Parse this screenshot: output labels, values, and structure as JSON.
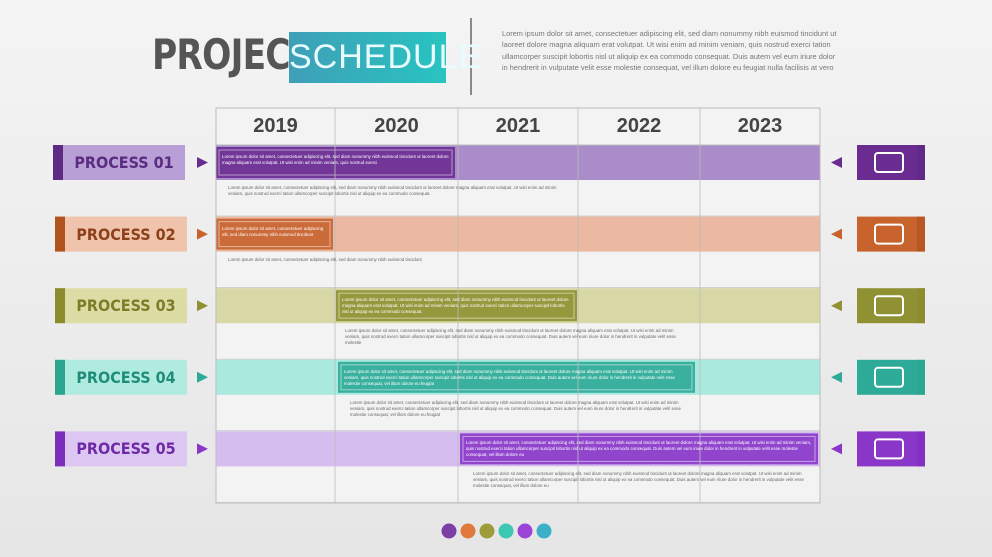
{
  "header": {
    "title_1": "PROJECT",
    "title_2": "SCHEDULE",
    "description": "Lorem ipsum dolor sit amet, consectetuer adipiscing elit, sed diam nonummy nibh euismod tincidunt ut laoreet dolore magna aliquam erat volutpat. Ut wisi enim ad minim veniam, quis nostrud exerci tation ullamcorper suscipit lobortis nisl ut aliquip ex ea commodo consequat. Duis autem vel eum iriure dolor in hendrerit in vulputate velit esse molestie consequat, vel illum dolore eu feugiat nulla facilisis at vero"
  },
  "years": [
    "2019",
    "2020",
    "2021",
    "2022",
    "2023"
  ],
  "processes": [
    {
      "label": "PROCESS 01",
      "task_text": "Lorem ipsum dolor sit amet, consectetuer adipiscing elit, sed diam nonummy nibh euismod tincidunt ut laoreet dolore magna aliquam erat volutpat. Ut wisi enim ad minim veniam, quis nostrud exerci",
      "note_text": "Lorem ipsum dolor sit amet, consectetuer adipiscing elit, sed diam nonummy nibh euismod tincidunt ut laoreet dolore magna aliquam erat volutpat. Ut wisi enim ad minim veniam, quis nostrud exerci tation ullamcorper suscipit lobortis nisl ut aliquip ex ea commodo consequat."
    },
    {
      "label": "PROCESS 02",
      "task_text": "Lorem ipsum dolor sit amet, consectetuer adipiscing elit, sed diam nonummy nibh euismod tincidunt",
      "note_text": "Lorem ipsum dolor sit amet, consectetuer adipiscing elit, sed diam nonummy nibh euismod tincidunt"
    },
    {
      "label": "PROCESS 03",
      "task_text": "Lorem ipsum dolor sit amet, consectetuer adipiscing elit, sed diam nonummy nibh euismod tincidunt ut laoreet dolore magna aliquam erat volutpat. Ut wisi enim ad minim veniam, quis nostrud exerci tation ullamcorper suscipit lobortis nisl ut aliquip ex ea commodo consequat.",
      "note_text": "Lorem ipsum dolor sit amet, consectetuer adipiscing elit, sed diam nonummy nibh euismod tincidunt ut laoreet dolore magna aliquam erat volutpat. Ut wisi enim ad minim veniam, quis nostrud exerci tation ullamcorper suscipit lobortis nisl ut aliquip ex ea commodo consequat. Duis autem vel eum iriure dolor in hendrerit in vulputate velit esse molestie"
    },
    {
      "label": "PROCESS 04",
      "task_text": "Lorem ipsum dolor sit amet, consectetuer adipiscing elit, sed diam nonummy nibh euismod tincidunt ut laoreet dolore magna aliquam erat volutpat. Ut wisi enim ad minim veniam, quis nostrud exerci tation ullamcorper suscipit lobortis nisl ut aliquip ex ea commodo consequat. Duis autem vel eum iriure dolor in hendrerit in vulputate velit esse molestie consequat, vel illum dolore eu feugiat",
      "note_text": "Lorem ipsum dolor sit amet, consectetuer adipiscing elit, sed diam nonummy nibh euismod tincidunt ut laoreet dolore magna aliquam erat volutpat. Ut wisi enim ad minim veniam, quis nostrud exerci tation ullamcorper suscipit lobortis nisl ut aliquip ex ea commodo consequat. Duis autem vel eum iriure dolor in hendrerit in vulputate velit esse molestie consequat, vel illum dolore eu feugiat"
    },
    {
      "label": "PROCESS 05",
      "task_text": "Lorem ipsum dolor sit amet, consectetuer adipiscing elit, sed diam nonummy nibh euismod tincidunt ut laoreet dolore magna aliquam erat volutpat. Ut wisi enim ad minim veniam, quis nostrud exerci tation ullamcorper suscipit lobortis nisl ut aliquip ex ea commodo consequat. Duis autem vel eum iriure dolor in hendrerit in vulputate velit esse molestie consequat, vel illum dolore eu",
      "note_text": "Lorem ipsum dolor sit amet, consectetuer adipiscing elit, sed diam nonummy nibh euismod tincidunt ut laoreet dolore magna aliquam erat volutpat. Ut wisi enim ad minim veniam, quis nostrud exerci tation ullamcorper suscipit lobortis nisl ut aliquip ex ea commodo consequat. Duis autem vel eum iriure dolor in hendrerit in vulputate velit esse molestie consequat, vel illum dolore eu"
    }
  ]
}
